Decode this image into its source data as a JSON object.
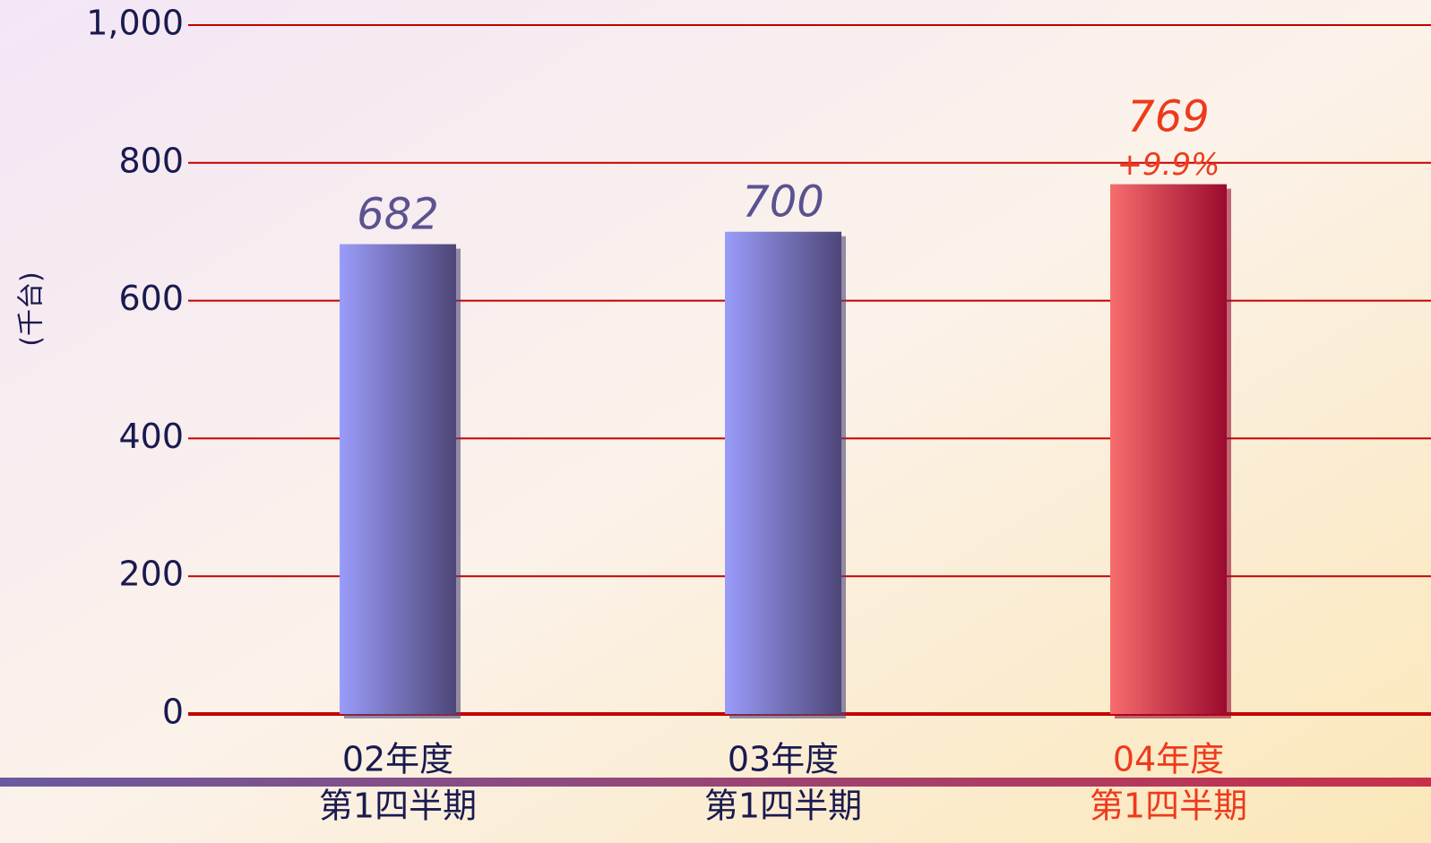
{
  "chart_data": {
    "type": "bar",
    "y_axis_label": "(千台)",
    "categories": [
      [
        "02年度",
        "第1四半期"
      ],
      [
        "03年度",
        "第1四半期"
      ],
      [
        "04年度",
        "第1四半期"
      ]
    ],
    "values": [
      682,
      700,
      769
    ],
    "colors": [
      [
        "#9a9cfa",
        "#4e4678"
      ],
      [
        "#9a9cfa",
        "#4e4678"
      ],
      [
        "#f76d6d",
        "#9a0a2e"
      ]
    ],
    "label_colors": [
      "#5a5290",
      "#5a5290",
      "#ee3a1c"
    ],
    "category_colors": [
      "#1a1a50",
      "#1a1a50",
      "#ee3a1c"
    ],
    "annotation": "+9.9%",
    "ylim": [
      0,
      1000
    ],
    "yticks": [
      0,
      200,
      400,
      600,
      800,
      {
        "value": 1000,
        "label": "1,000"
      }
    ],
    "grid": true,
    "grid_color": "#c40000"
  }
}
